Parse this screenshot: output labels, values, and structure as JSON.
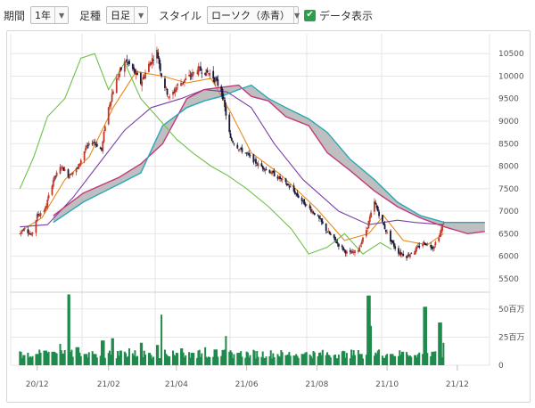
{
  "toolbar": {
    "period_label": "期間",
    "period_value": "1年",
    "type_label": "足種",
    "type_value": "日足",
    "style_label": "スタイル",
    "style_value": "ローソク（赤青）",
    "data_display_label": "データ表示",
    "data_display_checked": true,
    "check_mark": "✔",
    "dropdown_arrow": "▼"
  },
  "colors": {
    "candle_up": "#c0392b",
    "candle_down": "#1a1a3a",
    "ma_short": "#e8891a",
    "ma_mid": "#7b3fa6",
    "leading_span_a": "#c23a7c",
    "leading_span_b": "#29a8b8",
    "lagging_span": "#6ec24a",
    "cloud": "#a9a9a9",
    "volume": "#1f8a4c",
    "grid": "#e6e6e6"
  },
  "chart_data": {
    "type": "candlestick",
    "price_axis": {
      "ylim": [
        5200,
        10900
      ],
      "ticks": [
        "10500",
        "10000",
        "9500",
        "9000",
        "8500",
        "8000",
        "7500",
        "7000",
        "6500",
        "6000",
        "5500"
      ]
    },
    "volume_axis": {
      "unit": "百万",
      "ylim": [
        0,
        65
      ],
      "ticks": [
        "50百万",
        "25百万",
        "0"
      ]
    },
    "x_axis": {
      "ticks": [
        "20/12",
        "21/02",
        "21/04",
        "21/06",
        "21/08",
        "21/10",
        "21/12"
      ]
    },
    "close_path": [
      [
        "2020-11-16",
        6500
      ],
      [
        "2020-11-20",
        6650
      ],
      [
        "2020-11-26",
        6450
      ],
      [
        "2020-12-01",
        6900
      ],
      [
        "2020-12-08",
        7050
      ],
      [
        "2020-12-15",
        7700
      ],
      [
        "2020-12-22",
        8000
      ],
      [
        "2020-12-28",
        7800
      ],
      [
        "2021-01-05",
        7950
      ],
      [
        "2021-01-12",
        8400
      ],
      [
        "2021-01-19",
        8550
      ],
      [
        "2021-01-26",
        8350
      ],
      [
        "2021-01-30",
        9100
      ],
      [
        "2021-02-05",
        9700
      ],
      [
        "2021-02-10",
        10050
      ],
      [
        "2021-02-16",
        10350
      ],
      [
        "2021-02-22",
        10150
      ],
      [
        "2021-03-01",
        9850
      ],
      [
        "2021-03-08",
        10250
      ],
      [
        "2021-03-15",
        10550
      ],
      [
        "2021-03-20",
        9900
      ],
      [
        "2021-03-26",
        9500
      ],
      [
        "2021-04-02",
        9800
      ],
      [
        "2021-04-10",
        9950
      ],
      [
        "2021-04-20",
        10150
      ],
      [
        "2021-05-01",
        10050
      ],
      [
        "2021-05-10",
        9700
      ],
      [
        "2021-05-14",
        9150
      ],
      [
        "2021-05-18",
        8600
      ],
      [
        "2021-05-25",
        8400
      ],
      [
        "2021-06-02",
        8250
      ],
      [
        "2021-06-10",
        8050
      ],
      [
        "2021-06-20",
        7900
      ],
      [
        "2021-07-01",
        7700
      ],
      [
        "2021-07-10",
        7500
      ],
      [
        "2021-07-20",
        7200
      ],
      [
        "2021-08-01",
        6900
      ],
      [
        "2021-08-10",
        6550
      ],
      [
        "2021-08-20",
        6250
      ],
      [
        "2021-08-28",
        6050
      ],
      [
        "2021-09-05",
        6100
      ],
      [
        "2021-09-12",
        6500
      ],
      [
        "2021-09-20",
        7200
      ],
      [
        "2021-09-26",
        6800
      ],
      [
        "2021-10-02",
        6450
      ],
      [
        "2021-10-10",
        6100
      ],
      [
        "2021-10-18",
        6000
      ],
      [
        "2021-10-26",
        6150
      ],
      [
        "2021-11-02",
        6300
      ],
      [
        "2021-11-10",
        6200
      ],
      [
        "2021-11-16",
        6500
      ],
      [
        "2021-11-19",
        6750
      ]
    ],
    "series": [
      {
        "name": "",
        "role": "ma_short",
        "points": [
          [
            "2020-11-16",
            6550
          ],
          [
            "2020-12-05",
            6850
          ],
          [
            "2020-12-25",
            7700
          ],
          [
            "2021-01-15",
            8200
          ],
          [
            "2021-02-05",
            9300
          ],
          [
            "2021-02-25",
            10100
          ],
          [
            "2021-03-20",
            10000
          ],
          [
            "2021-04-10",
            9850
          ],
          [
            "2021-05-01",
            9950
          ],
          [
            "2021-05-18",
            9200
          ],
          [
            "2021-06-05",
            8300
          ],
          [
            "2021-07-01",
            7800
          ],
          [
            "2021-08-01",
            7050
          ],
          [
            "2021-08-25",
            6350
          ],
          [
            "2021-09-15",
            6500
          ],
          [
            "2021-09-28",
            6900
          ],
          [
            "2021-10-15",
            6350
          ],
          [
            "2021-11-05",
            6250
          ],
          [
            "2021-11-19",
            6500
          ]
        ]
      },
      {
        "name": "",
        "role": "ma_mid",
        "points": [
          [
            "2020-11-16",
            6650
          ],
          [
            "2020-12-10",
            6700
          ],
          [
            "2021-01-01",
            7300
          ],
          [
            "2021-01-25",
            8100
          ],
          [
            "2021-02-15",
            8800
          ],
          [
            "2021-03-10",
            9300
          ],
          [
            "2021-04-05",
            9500
          ],
          [
            "2021-04-25",
            9700
          ],
          [
            "2021-05-15",
            9650
          ],
          [
            "2021-06-05",
            9300
          ],
          [
            "2021-06-25",
            8500
          ],
          [
            "2021-07-20",
            7700
          ],
          [
            "2021-08-20",
            7000
          ],
          [
            "2021-09-15",
            6700
          ],
          [
            "2021-10-10",
            6800
          ],
          [
            "2021-10-25",
            6750
          ],
          [
            "2021-11-19",
            6700
          ]
        ]
      },
      {
        "name": "",
        "role": "leading_span_a",
        "points": [
          [
            "2020-12-15",
            6900
          ],
          [
            "2021-01-10",
            7400
          ],
          [
            "2021-02-10",
            7750
          ],
          [
            "2021-03-01",
            8050
          ],
          [
            "2021-03-20",
            8500
          ],
          [
            "2021-04-10",
            9500
          ],
          [
            "2021-04-25",
            9700
          ],
          [
            "2021-05-10",
            9750
          ],
          [
            "2021-05-25",
            9800
          ],
          [
            "2021-06-05",
            9550
          ],
          [
            "2021-06-20",
            9450
          ],
          [
            "2021-07-05",
            9100
          ],
          [
            "2021-07-25",
            8900
          ],
          [
            "2021-08-10",
            8300
          ],
          [
            "2021-08-30",
            7900
          ],
          [
            "2021-09-20",
            7450
          ],
          [
            "2021-10-10",
            7100
          ],
          [
            "2021-10-30",
            6850
          ],
          [
            "2021-11-20",
            6650
          ],
          [
            "2021-12-10",
            6500
          ],
          [
            "2021-12-25",
            6550
          ]
        ]
      },
      {
        "name": "",
        "role": "leading_span_b",
        "points": [
          [
            "2020-12-15",
            6750
          ],
          [
            "2021-01-10",
            7200
          ],
          [
            "2021-02-10",
            7600
          ],
          [
            "2021-03-01",
            7850
          ],
          [
            "2021-03-20",
            8900
          ],
          [
            "2021-04-10",
            9300
          ],
          [
            "2021-04-25",
            9450
          ],
          [
            "2021-05-10",
            9550
          ],
          [
            "2021-05-25",
            9700
          ],
          [
            "2021-06-05",
            9800
          ],
          [
            "2021-06-20",
            9500
          ],
          [
            "2021-07-05",
            9300
          ],
          [
            "2021-07-25",
            9050
          ],
          [
            "2021-08-10",
            8750
          ],
          [
            "2021-08-30",
            8150
          ],
          [
            "2021-09-20",
            7700
          ],
          [
            "2021-10-10",
            7200
          ],
          [
            "2021-10-30",
            6900
          ],
          [
            "2021-11-20",
            6750
          ],
          [
            "2021-12-10",
            6750
          ],
          [
            "2021-12-25",
            6750
          ]
        ]
      },
      {
        "name": "",
        "role": "lagging_span",
        "points": [
          [
            "2020-11-16",
            7500
          ],
          [
            "2020-11-28",
            8200
          ],
          [
            "2020-12-10",
            9100
          ],
          [
            "2020-12-25",
            9500
          ],
          [
            "2021-01-08",
            10400
          ],
          [
            "2021-01-20",
            10500
          ],
          [
            "2021-02-01",
            9700
          ],
          [
            "2021-02-15",
            10300
          ],
          [
            "2021-03-01",
            9500
          ],
          [
            "2021-03-15",
            9100
          ],
          [
            "2021-04-01",
            8600
          ],
          [
            "2021-04-15",
            8300
          ],
          [
            "2021-05-01",
            8000
          ],
          [
            "2021-05-15",
            7800
          ],
          [
            "2021-06-01",
            7500
          ],
          [
            "2021-06-20",
            7100
          ],
          [
            "2021-07-10",
            6600
          ],
          [
            "2021-07-25",
            6050
          ],
          [
            "2021-08-10",
            6200
          ],
          [
            "2021-08-25",
            6500
          ],
          [
            "2021-09-10",
            6050
          ],
          [
            "2021-09-25",
            6300
          ],
          [
            "2021-10-05",
            6150
          ]
        ]
      }
    ],
    "volume": [
      [
        "2020-11-20",
        9
      ],
      [
        "2020-12-01",
        10
      ],
      [
        "2020-12-08",
        13
      ],
      [
        "2020-12-15",
        12
      ],
      [
        "2020-12-20",
        19
      ],
      [
        "2020-12-28",
        63
      ],
      [
        "2021-01-05",
        16
      ],
      [
        "2021-01-12",
        10
      ],
      [
        "2021-01-20",
        10
      ],
      [
        "2021-01-27",
        22
      ],
      [
        "2021-02-05",
        24
      ],
      [
        "2021-02-12",
        13
      ],
      [
        "2021-02-20",
        15
      ],
      [
        "2021-03-01",
        20
      ],
      [
        "2021-03-08",
        11
      ],
      [
        "2021-03-15",
        18
      ],
      [
        "2021-03-20",
        45
      ],
      [
        "2021-03-28",
        13
      ],
      [
        "2021-04-05",
        15
      ],
      [
        "2021-04-15",
        11
      ],
      [
        "2021-04-25",
        16
      ],
      [
        "2021-05-05",
        14
      ],
      [
        "2021-05-15",
        26
      ],
      [
        "2021-05-25",
        11
      ],
      [
        "2021-06-05",
        9
      ],
      [
        "2021-06-20",
        8
      ],
      [
        "2021-07-05",
        9
      ],
      [
        "2021-07-20",
        10
      ],
      [
        "2021-08-01",
        8
      ],
      [
        "2021-08-15",
        9
      ],
      [
        "2021-08-28",
        11
      ],
      [
        "2021-09-08",
        10
      ],
      [
        "2021-09-15",
        62
      ],
      [
        "2021-09-18",
        35
      ],
      [
        "2021-09-25",
        14
      ],
      [
        "2021-10-05",
        10
      ],
      [
        "2021-10-15",
        12
      ],
      [
        "2021-10-25",
        9
      ],
      [
        "2021-11-03",
        52
      ],
      [
        "2021-11-10",
        12
      ],
      [
        "2021-11-16",
        38
      ],
      [
        "2021-11-20",
        20
      ]
    ]
  }
}
